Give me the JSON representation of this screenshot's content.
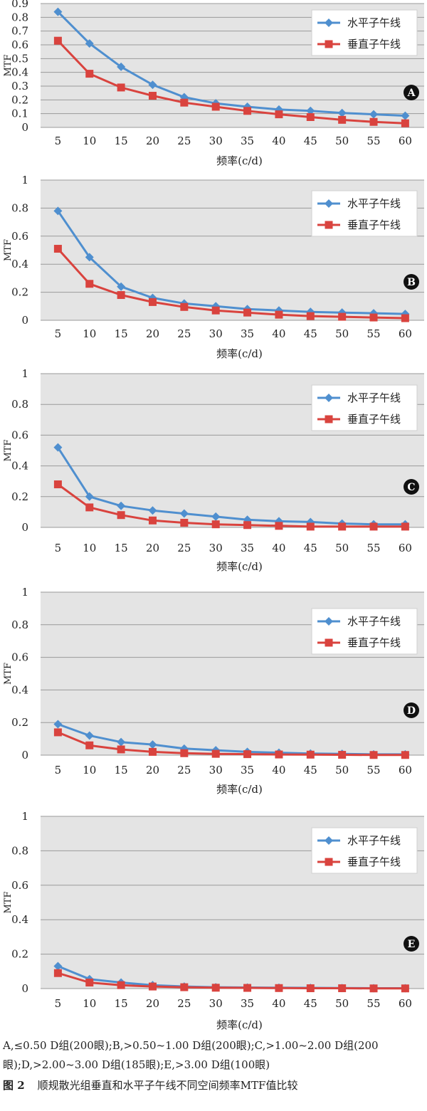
{
  "figure": {
    "number": "图 2",
    "title": "顺规散光组垂直和水平子午线不同空间频率MTF值比较"
  },
  "notes": "A,≤0.50 D组(200眼);B,>0.50~1.00 D组(200眼);C,>1.00~2.00 D组(200眼);D,>2.00~3.00 D组(185眼);E,>3.00 D组(100眼)",
  "colors": {
    "horizontal": "#4f8fcf",
    "vertical": "#d9433e",
    "plot_bg": "#e4e4e4",
    "grid": "#9a9a9a"
  },
  "chart_data": [
    {
      "type": "line",
      "panel_label": "A",
      "x": [
        5,
        10,
        15,
        20,
        25,
        30,
        35,
        40,
        45,
        50,
        55,
        60
      ],
      "xlabel": "频率(c/d)",
      "ylabel": "MTF",
      "ylim": [
        0,
        0.9
      ],
      "yticks": [
        "0",
        "0.1",
        "0.2",
        "0.3",
        "0.4",
        "0.5",
        "0.6",
        "0.7",
        "0.8",
        "0.9"
      ],
      "grid": true,
      "legend_position": "top-right",
      "series": [
        {
          "name": "水平子午线",
          "marker": "diamond",
          "values": [
            0.84,
            0.61,
            0.44,
            0.31,
            0.22,
            0.175,
            0.15,
            0.13,
            0.12,
            0.105,
            0.095,
            0.085
          ]
        },
        {
          "name": "垂直子午线",
          "marker": "square",
          "values": [
            0.63,
            0.39,
            0.29,
            0.23,
            0.18,
            0.15,
            0.12,
            0.095,
            0.075,
            0.055,
            0.04,
            0.03
          ]
        }
      ]
    },
    {
      "type": "line",
      "panel_label": "B",
      "x": [
        5,
        10,
        15,
        20,
        25,
        30,
        35,
        40,
        45,
        50,
        55,
        60
      ],
      "xlabel": "频率(c/d)",
      "ylabel": "MTF",
      "ylim": [
        0,
        1
      ],
      "yticks": [
        "0",
        "0.2",
        "0.4",
        "0.6",
        "0.8",
        "1"
      ],
      "grid": true,
      "legend_position": "top-right",
      "series": [
        {
          "name": "水平子午线",
          "marker": "diamond",
          "values": [
            0.78,
            0.45,
            0.24,
            0.16,
            0.12,
            0.1,
            0.08,
            0.07,
            0.06,
            0.055,
            0.05,
            0.045
          ]
        },
        {
          "name": "垂直子午线",
          "marker": "square",
          "values": [
            0.51,
            0.26,
            0.18,
            0.13,
            0.095,
            0.07,
            0.055,
            0.04,
            0.03,
            0.025,
            0.02,
            0.015
          ]
        }
      ]
    },
    {
      "type": "line",
      "panel_label": "C",
      "x": [
        5,
        10,
        15,
        20,
        25,
        30,
        35,
        40,
        45,
        50,
        55,
        60
      ],
      "xlabel": "频率(c/d)",
      "ylabel": "MTF",
      "ylim": [
        0,
        1
      ],
      "yticks": [
        "0",
        "0.2",
        "0.4",
        "0.6",
        "0.8",
        "1"
      ],
      "grid": true,
      "legend_position": "top-right",
      "series": [
        {
          "name": "水平子午线",
          "marker": "diamond",
          "values": [
            0.52,
            0.2,
            0.14,
            0.11,
            0.09,
            0.07,
            0.05,
            0.04,
            0.035,
            0.025,
            0.02,
            0.02
          ]
        },
        {
          "name": "垂直子午线",
          "marker": "square",
          "values": [
            0.28,
            0.13,
            0.08,
            0.045,
            0.03,
            0.02,
            0.015,
            0.01,
            0.005,
            0.005,
            0.005,
            0.005
          ]
        }
      ]
    },
    {
      "type": "line",
      "panel_label": "D",
      "x": [
        5,
        10,
        15,
        20,
        25,
        30,
        35,
        40,
        45,
        50,
        55,
        60
      ],
      "xlabel": "频率(c/d)",
      "ylabel": "MTF",
      "ylim": [
        0,
        1
      ],
      "yticks": [
        "0",
        "0.2",
        "0.4",
        "0.6",
        "0.8",
        "1"
      ],
      "grid": true,
      "legend_position": "top-right",
      "series": [
        {
          "name": "水平子午线",
          "marker": "diamond",
          "values": [
            0.19,
            0.12,
            0.08,
            0.065,
            0.04,
            0.03,
            0.02,
            0.015,
            0.01,
            0.008,
            0.005,
            0.005
          ]
        },
        {
          "name": "垂直子午线",
          "marker": "square",
          "values": [
            0.14,
            0.06,
            0.035,
            0.02,
            0.012,
            0.008,
            0.006,
            0.004,
            0.003,
            0.002,
            0.001,
            0.001
          ]
        }
      ]
    },
    {
      "type": "line",
      "panel_label": "E",
      "x": [
        5,
        10,
        15,
        20,
        25,
        30,
        35,
        40,
        45,
        50,
        55,
        60
      ],
      "xlabel": "频率(c/d)",
      "ylabel": "MTF",
      "ylim": [
        0,
        1
      ],
      "yticks": [
        "0",
        "0.2",
        "0.4",
        "0.6",
        "0.8",
        "1"
      ],
      "grid": true,
      "legend_position": "top-right",
      "series": [
        {
          "name": "水平子午线",
          "marker": "diamond",
          "values": [
            0.13,
            0.055,
            0.035,
            0.02,
            0.012,
            0.008,
            0.006,
            0.005,
            0.004,
            0.003,
            0.002,
            0.002
          ]
        },
        {
          "name": "垂直子午线",
          "marker": "square",
          "values": [
            0.09,
            0.035,
            0.02,
            0.012,
            0.008,
            0.005,
            0.004,
            0.003,
            0.002,
            0.002,
            0.001,
            0.001
          ]
        }
      ]
    }
  ]
}
